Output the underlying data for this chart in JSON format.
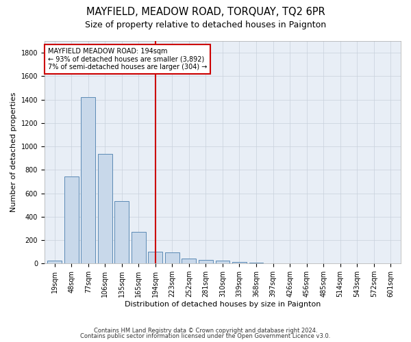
{
  "title": "MAYFIELD, MEADOW ROAD, TORQUAY, TQ2 6PR",
  "subtitle": "Size of property relative to detached houses in Paignton",
  "xlabel": "Distribution of detached houses by size in Paignton",
  "ylabel": "Number of detached properties",
  "footnote1": "Contains HM Land Registry data © Crown copyright and database right 2024.",
  "footnote2": "Contains public sector information licensed under the Open Government Licence v3.0.",
  "annotation_title": "MAYFIELD MEADOW ROAD: 194sqm",
  "annotation_line1": "← 93% of detached houses are smaller (3,892)",
  "annotation_line2": "7% of semi-detached houses are larger (304) →",
  "bar_color": "#c8d8ea",
  "bar_edge_color": "#5b8ab5",
  "vline_color": "#cc0000",
  "annotation_box_edgecolor": "#cc0000",
  "annotation_box_facecolor": "#ffffff",
  "bg_color": "#e8eef6",
  "fig_bg_color": "#ffffff",
  "grid_color": "#c8d0dc",
  "categories": [
    "19sqm",
    "48sqm",
    "77sqm",
    "106sqm",
    "135sqm",
    "165sqm",
    "194sqm",
    "223sqm",
    "252sqm",
    "281sqm",
    "310sqm",
    "339sqm",
    "368sqm",
    "397sqm",
    "426sqm",
    "456sqm",
    "485sqm",
    "514sqm",
    "543sqm",
    "572sqm",
    "601sqm"
  ],
  "values": [
    22,
    745,
    1422,
    938,
    533,
    268,
    102,
    93,
    40,
    30,
    22,
    12,
    8,
    4,
    4,
    3,
    2,
    1,
    1,
    1,
    2
  ],
  "ylim": [
    0,
    1900
  ],
  "yticks": [
    0,
    200,
    400,
    600,
    800,
    1000,
    1200,
    1400,
    1600,
    1800
  ],
  "vline_x_index": 6,
  "figsize": [
    6.0,
    5.0
  ],
  "dpi": 100,
  "title_fontsize": 10.5,
  "subtitle_fontsize": 9,
  "axis_label_fontsize": 8,
  "tick_fontsize": 7,
  "annotation_fontsize": 7,
  "footnote_fontsize": 6
}
